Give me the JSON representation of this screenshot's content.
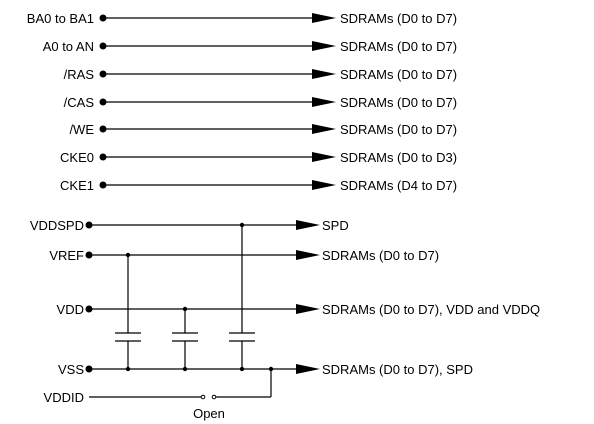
{
  "signals": [
    {
      "label": "BA0 to BA1",
      "target": "SDRAMs (D0 to D7)"
    },
    {
      "label": "A0 to AN",
      "target": "SDRAMs (D0 to D7)"
    },
    {
      "label": "/RAS",
      "target": "SDRAMs (D0 to D7)"
    },
    {
      "label": "/CAS",
      "target": "SDRAMs (D0 to D7)"
    },
    {
      "label": "/WE",
      "target": "SDRAMs (D0 to D7)"
    },
    {
      "label": "CKE0",
      "target": "SDRAMs (D0 to D3)"
    },
    {
      "label": "CKE1",
      "target": "SDRAMs (D4 to D7)"
    }
  ],
  "power": {
    "vddspd": {
      "label": "VDDSPD",
      "target": "SPD"
    },
    "vref": {
      "label": "VREF",
      "target": "SDRAMs (D0 to D7)"
    },
    "vdd": {
      "label": "VDD",
      "target": "SDRAMs (D0 to D7), VDD and VDDQ"
    },
    "vss": {
      "label": "VSS",
      "target": "SDRAMs (D0 to D7), SPD"
    },
    "vddid": {
      "label": "VDDID",
      "switch_label": "Open"
    }
  }
}
